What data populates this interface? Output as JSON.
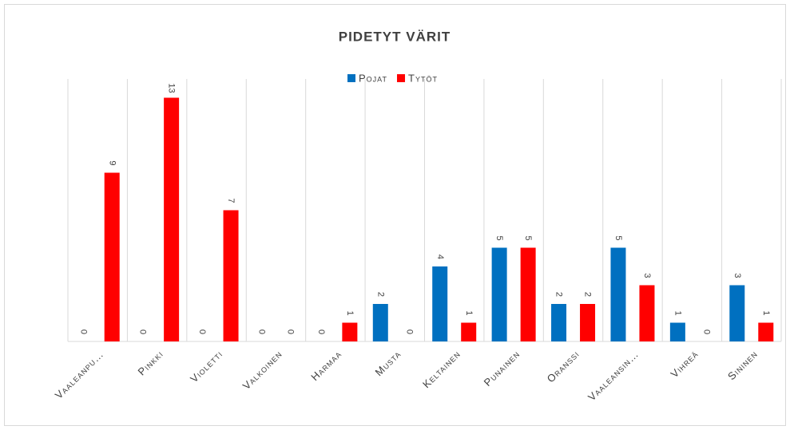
{
  "chart_data": {
    "type": "bar",
    "title": "PIDETYT VÄRIT",
    "categories": [
      "Vaaleanpu…",
      "Pinkki",
      "Violetti",
      "Valkoinen",
      "Harmaa",
      "Musta",
      "Keltainen",
      "Punainen",
      "Oranssi",
      "Vaaleansin…",
      "Vihreä",
      "Sininen"
    ],
    "series": [
      {
        "name": "Pojat",
        "color": "#0070c0",
        "values": [
          0,
          0,
          0,
          0,
          0,
          2,
          4,
          5,
          2,
          5,
          1,
          3
        ]
      },
      {
        "name": "Tytöt",
        "color": "#ff0000",
        "values": [
          9,
          13,
          7,
          0,
          1,
          0,
          1,
          5,
          2,
          3,
          0,
          1
        ]
      }
    ],
    "ylim": [
      0,
      14
    ],
    "grid": true,
    "legend": "top"
  }
}
